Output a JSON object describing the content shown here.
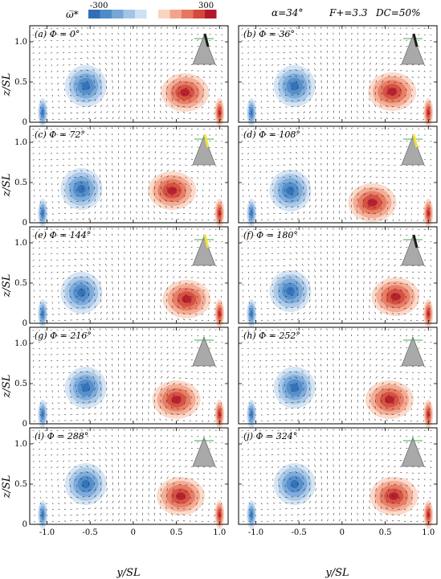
{
  "colorbar": {
    "label": "ω̅*",
    "min_label": "-300",
    "max_label": "300",
    "colors": [
      "#2f6fb5",
      "#4f8bc9",
      "#76a7d8",
      "#a3c4e6",
      "#cfe0f2",
      "#ffffff",
      "#fbd3c2",
      "#f3a58c",
      "#e6765f",
      "#d24a3c",
      "#b2182b"
    ]
  },
  "header": {
    "alpha": "α=34°",
    "fplus": "F+=3.3",
    "dc": "DC=50%"
  },
  "axes": {
    "ylabel": "z/SL",
    "xlabel": "y/SL",
    "xticks": [
      "-1.0",
      "-0.5",
      "0",
      "0.5",
      "1.0"
    ],
    "yticks": [
      "0",
      "0.5",
      "1.0"
    ]
  },
  "panels": [
    {
      "label": "(a) Φ = 0°"
    },
    {
      "label": "(b) Φ = 36°"
    },
    {
      "label": "(c) Φ = 72°"
    },
    {
      "label": "(d) Φ = 108°"
    },
    {
      "label": "(e) Φ = 144°"
    },
    {
      "label": "(f) Φ = 180°"
    },
    {
      "label": "(g) Φ = 216°"
    },
    {
      "label": "(h) Φ = 252°"
    },
    {
      "label": "(i) Φ = 288°"
    },
    {
      "label": "(j) Φ = 324°"
    }
  ],
  "chart_data": {
    "type": "heatmap",
    "quantity": "phase-averaged streamwise vorticity with velocity vectors",
    "xlim": [
      -1.2,
      1.1
    ],
    "ylim": [
      0,
      1.2
    ],
    "colorbar_range": [
      -300,
      300
    ],
    "phases_deg": [
      0,
      36,
      72,
      108,
      144,
      180,
      216,
      252,
      288,
      324
    ],
    "vortices": [
      {
        "phase": 0,
        "neg": [
          -0.55,
          0.45
        ],
        "pos": [
          0.6,
          0.37
        ]
      },
      {
        "phase": 36,
        "neg": [
          -0.55,
          0.45
        ],
        "pos": [
          0.58,
          0.38
        ]
      },
      {
        "phase": 72,
        "neg": [
          -0.6,
          0.42
        ],
        "pos": [
          0.45,
          0.4
        ]
      },
      {
        "phase": 108,
        "neg": [
          -0.6,
          0.4
        ],
        "pos": [
          0.35,
          0.25
        ]
      },
      {
        "phase": 144,
        "neg": [
          -0.6,
          0.38
        ],
        "pos": [
          0.62,
          0.3
        ]
      },
      {
        "phase": 180,
        "neg": [
          -0.6,
          0.4
        ],
        "pos": [
          0.62,
          0.33
        ]
      },
      {
        "phase": 216,
        "neg": [
          -0.55,
          0.45
        ],
        "pos": [
          0.5,
          0.3
        ]
      },
      {
        "phase": 252,
        "neg": [
          -0.55,
          0.45
        ],
        "pos": [
          0.55,
          0.3
        ]
      },
      {
        "phase": 288,
        "neg": [
          -0.55,
          0.5
        ],
        "pos": [
          0.55,
          0.35
        ]
      },
      {
        "phase": 324,
        "neg": [
          -0.55,
          0.5
        ],
        "pos": [
          0.6,
          0.35
        ]
      }
    ],
    "flap_colors": [
      "#1a1a1a",
      "#1a1a1a",
      "#f5e33b",
      "#f5e33b",
      "#f5e33b",
      "#1a1a1a",
      "",
      "",
      "",
      ""
    ]
  }
}
